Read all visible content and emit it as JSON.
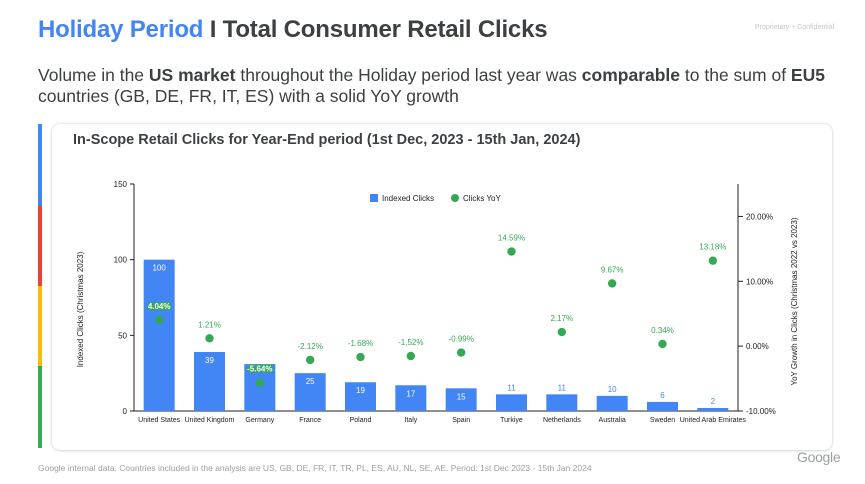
{
  "header": {
    "title_accent": "Holiday Period",
    "title_rest": " I Total Consumer Retail Clicks",
    "proprietary": "Proprietary + Confidential"
  },
  "subtitle": {
    "p1": "Volume in the ",
    "b1": "US market",
    "p2": " throughout the Holiday period last year was ",
    "b2": "comparable",
    "p3": " to the sum of ",
    "b3": "EU5",
    "p4": " countries (GB, DE, FR, IT, ES) with a solid YoY growth"
  },
  "colors": {
    "bar": "#4285f4",
    "dot": "#34a853",
    "stripe_blue": "#4285f4",
    "stripe_red": "#ea4335",
    "stripe_yellow": "#fbbc04",
    "stripe_green": "#34a853"
  },
  "chart_data": {
    "type": "bar",
    "title": "In-Scope Retail Clicks for Year-End period (1st Dec, 2023 - 15th Jan, 2024)",
    "categories": [
      "United States",
      "United Kingdom",
      "Germany",
      "France",
      "Poland",
      "Italy",
      "Spain",
      "Turkiye",
      "Netherlands",
      "Australia",
      "Sweden",
      "United Arab Emirates"
    ],
    "series": [
      {
        "name": "Indexed Clicks",
        "axis": "left",
        "values": [
          100,
          39,
          31,
          25,
          19,
          17,
          15,
          11,
          11,
          10,
          6,
          2
        ],
        "labels": [
          "100",
          "39",
          "",
          "25",
          "19",
          "17",
          "15",
          "11",
          "11",
          "10",
          "6",
          "2"
        ]
      },
      {
        "name": "Clicks YoY",
        "axis": "right",
        "values": [
          4.04,
          1.21,
          -5.64,
          -2.12,
          -1.68,
          -1.52,
          -0.99,
          14.59,
          2.17,
          9.67,
          0.34,
          13.18
        ],
        "labels": [
          "4.04%",
          "1.21%",
          "-5.64%",
          "-2.12%",
          "-1.68%",
          "-1.52%",
          "-0.99%",
          "14.59%",
          "2.17%",
          "9.67%",
          "0.34%",
          "13.18%"
        ]
      }
    ],
    "ylabel": "Indexed Clicks (Christmas 2023)",
    "y2label": "YoY Growth in Clicks (Christmas 2022 vs 2023)",
    "ylim": [
      0,
      150
    ],
    "y2lim": [
      -10,
      25
    ],
    "yticks": [
      0,
      50,
      100,
      150
    ],
    "yticklabels": [
      "0",
      "50",
      "100",
      "150"
    ],
    "y2ticks": [
      -10,
      0,
      10,
      20
    ],
    "y2ticklabels": [
      "-10.00%",
      "0.00%",
      "10.00%",
      "20.00%"
    ],
    "legend": {
      "position": "top-center",
      "entries": [
        "Indexed Clicks",
        "Clicks YoY"
      ]
    }
  },
  "footer": {
    "note": "Google internal data. Countries included in the analysis are US, GB, DE, FR, IT, TR, PL, ES, AU, NL, SE, AE. Period: 1st Dec 2023 - 15th Jan 2024",
    "logo": "Google"
  }
}
